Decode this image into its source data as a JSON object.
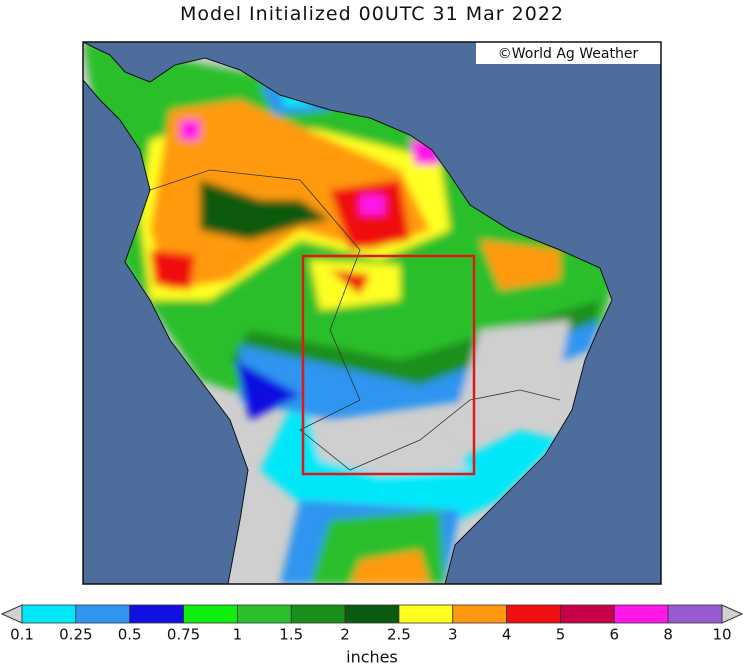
{
  "header": {
    "title": "Model Initialized 00UTC 31 Mar 2022",
    "credit": "©World Ag Weather"
  },
  "colorbar": {
    "levels": [
      0.1,
      0.25,
      0.5,
      0.75,
      1,
      1.5,
      2,
      2.5,
      3,
      4,
      5,
      6,
      8,
      10
    ],
    "colors": [
      "#00e8f8",
      "#2f95f0",
      "#1010e0",
      "#10ee10",
      "#2cbf2c",
      "#1a8f1a",
      "#0a5a10",
      "#ffff20",
      "#ff9a10",
      "#f01010",
      "#c8004a",
      "#ff18e8",
      "#9a5ad0"
    ],
    "under_color": "#d2d2d2",
    "over_color": "#d2d2d2",
    "unit": "inches"
  }
}
